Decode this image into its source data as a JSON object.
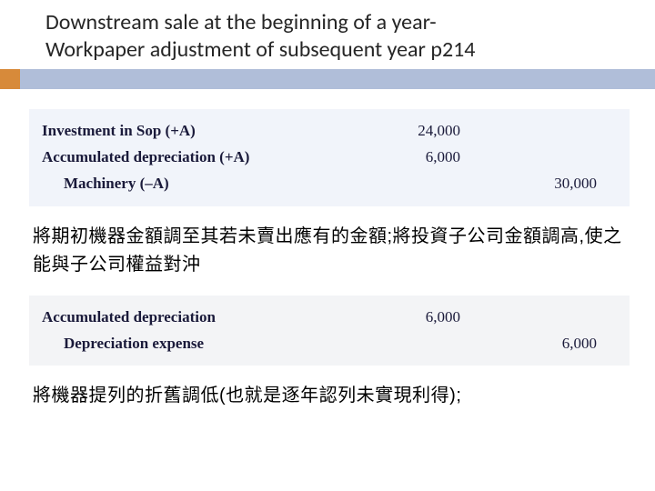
{
  "title_line1": "Downstream sale at the beginning of a year-",
  "title_line2": "Workpaper adjustment of subsequent year  p214",
  "je1": {
    "rows": [
      {
        "acct": "Investment in Sop (+A)",
        "dr": "24,000",
        "cr": "",
        "bold": true,
        "indent": 0
      },
      {
        "acct": "Accumulated depreciation (+A)",
        "dr": "6,000",
        "cr": "",
        "bold": true,
        "indent": 0
      },
      {
        "acct": "Machinery (–A)",
        "dr": "",
        "cr": "30,000",
        "bold": true,
        "indent": 1
      }
    ]
  },
  "para1": "將期初機器金額調至其若未賣出應有的金額;將投資子公司金額調高,使之能與子公司權益對沖",
  "je2": {
    "rows": [
      {
        "acct": "Accumulated depreciation",
        "dr": "6,000",
        "cr": "",
        "bold": true,
        "indent": 0
      },
      {
        "acct": "Depreciation expense",
        "dr": "",
        "cr": "6,000",
        "bold": true,
        "indent": 1
      }
    ]
  },
  "para2": "將機器提列的折舊調低(也就是逐年認列未實現利得);",
  "colors": {
    "accent_bar": "#b0bed9",
    "accent_square": "#d78a3a",
    "je_bg1": "#f1f4fa",
    "je_bg2": "#f3f4f6"
  }
}
